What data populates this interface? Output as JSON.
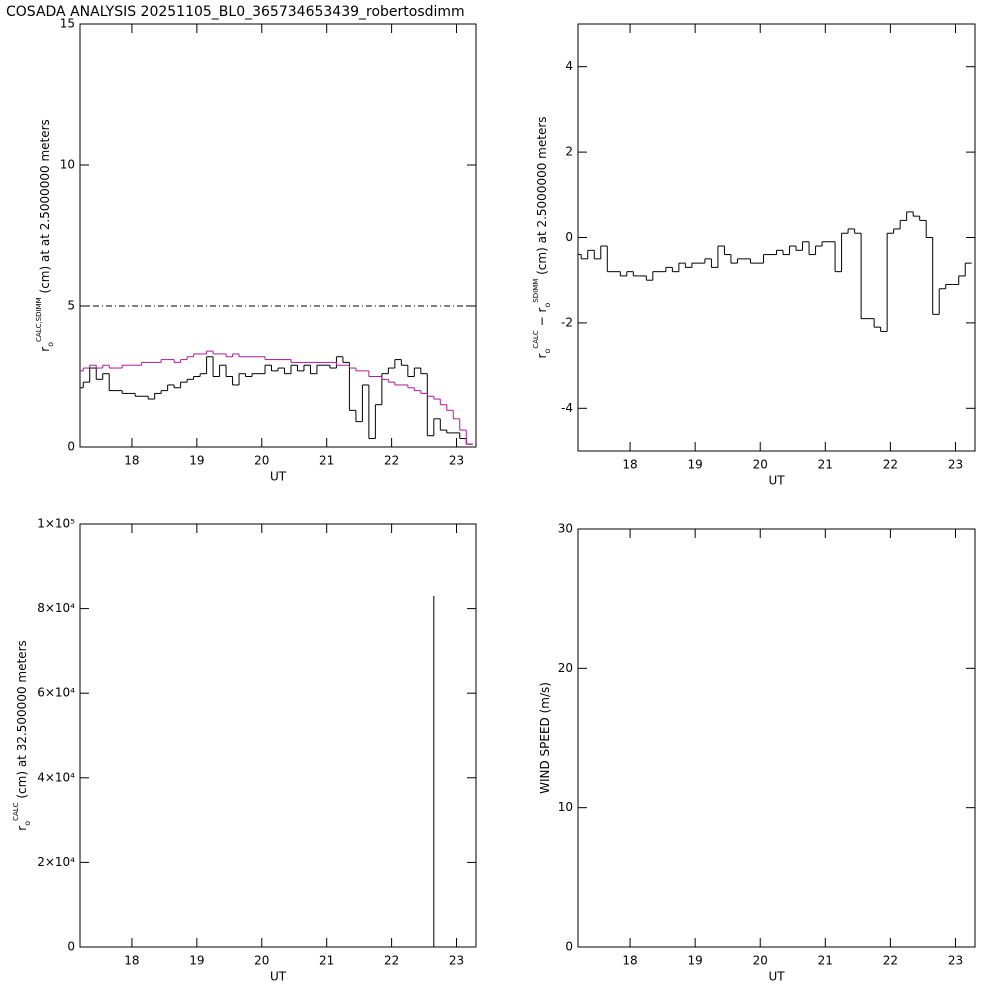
{
  "title": "COSADA ANALYSIS 20251105_BL0_365734653439_robertosdimm",
  "chart_data": [
    {
      "type": "step",
      "y_label": [
        {
          "text": "r"
        },
        {
          "sub": "o"
        },
        {
          "sup": "CALC,SDIMM"
        },
        {
          "text": " (cm) at  at 2.5000000 meters"
        }
      ],
      "x_label": "UT",
      "xlim": [
        17.2,
        23.3
      ],
      "xticks": [
        18,
        19,
        20,
        21,
        22,
        23
      ],
      "ylim": [
        0,
        15
      ],
      "yticks": [
        0,
        5,
        10,
        15
      ],
      "reference_line": 5,
      "x": [
        17.2,
        17.3,
        17.4,
        17.5,
        17.6,
        17.7,
        17.8,
        17.9,
        18.0,
        18.1,
        18.2,
        18.3,
        18.4,
        18.5,
        18.6,
        18.7,
        18.8,
        18.9,
        19.0,
        19.1,
        19.2,
        19.3,
        19.4,
        19.5,
        19.6,
        19.7,
        19.8,
        19.9,
        20.0,
        20.1,
        20.2,
        20.3,
        20.4,
        20.5,
        20.6,
        20.7,
        20.8,
        20.9,
        21.0,
        21.1,
        21.2,
        21.3,
        21.4,
        21.5,
        21.6,
        21.7,
        21.8,
        21.9,
        22.0,
        22.1,
        22.2,
        22.3,
        22.4,
        22.5,
        22.6,
        22.7,
        22.8,
        22.9,
        23.0,
        23.1,
        23.2
      ],
      "series": [
        {
          "color": "#000000",
          "values": [
            2.1,
            2.3,
            2.8,
            2.4,
            2.6,
            2.0,
            2.0,
            1.9,
            1.9,
            1.8,
            1.8,
            1.7,
            1.9,
            2.0,
            2.2,
            2.1,
            2.3,
            2.4,
            2.5,
            2.6,
            3.2,
            2.5,
            2.9,
            2.5,
            2.2,
            2.6,
            2.5,
            2.6,
            2.6,
            2.9,
            2.7,
            2.8,
            2.6,
            2.9,
            2.7,
            2.9,
            2.6,
            2.9,
            2.9,
            2.8,
            3.2,
            3.0,
            1.3,
            0.9,
            2.2,
            0.3,
            1.5,
            2.6,
            2.8,
            3.1,
            2.9,
            2.5,
            2.8,
            2.6,
            0.4,
            1.0,
            0.6,
            0.5,
            0.5,
            0.3,
            0.1
          ]
        },
        {
          "color": "#b0189a",
          "values": [
            2.7,
            2.8,
            2.9,
            2.8,
            2.9,
            2.8,
            2.8,
            2.9,
            2.9,
            2.9,
            3.0,
            3.0,
            3.0,
            3.1,
            3.1,
            3.0,
            3.1,
            3.2,
            3.3,
            3.3,
            3.4,
            3.3,
            3.3,
            3.2,
            3.3,
            3.2,
            3.2,
            3.2,
            3.2,
            3.1,
            3.1,
            3.1,
            3.1,
            3.0,
            3.0,
            3.0,
            3.0,
            3.0,
            3.0,
            3.0,
            2.9,
            2.9,
            2.8,
            2.7,
            2.7,
            2.5,
            2.5,
            2.4,
            2.3,
            2.2,
            2.2,
            2.1,
            2.0,
            1.9,
            1.8,
            1.7,
            1.5,
            1.3,
            1.0,
            0.6,
            0.1
          ]
        }
      ]
    },
    {
      "type": "step",
      "y_label": [
        {
          "text": "r"
        },
        {
          "sub": "o"
        },
        {
          "sup": "CALC"
        },
        {
          "text": "  − r"
        },
        {
          "sub": "o"
        },
        {
          "sup": "SDIMM"
        },
        {
          "text": " (cm) at 2.5000000 meters"
        }
      ],
      "x_label": "UT",
      "xlim": [
        17.2,
        23.3
      ],
      "xticks": [
        18,
        19,
        20,
        21,
        22,
        23
      ],
      "ylim": [
        -5,
        5
      ],
      "yticks": [
        -4,
        -2,
        0,
        2,
        4
      ],
      "x": [
        17.2,
        17.3,
        17.4,
        17.5,
        17.6,
        17.7,
        17.8,
        17.9,
        18.0,
        18.1,
        18.2,
        18.3,
        18.4,
        18.5,
        18.6,
        18.7,
        18.8,
        18.9,
        19.0,
        19.1,
        19.2,
        19.3,
        19.4,
        19.5,
        19.6,
        19.7,
        19.8,
        19.9,
        20.0,
        20.1,
        20.2,
        20.3,
        20.4,
        20.5,
        20.6,
        20.7,
        20.8,
        20.9,
        21.0,
        21.1,
        21.2,
        21.3,
        21.4,
        21.5,
        21.6,
        21.7,
        21.8,
        21.9,
        22.0,
        22.1,
        22.2,
        22.3,
        22.4,
        22.5,
        22.6,
        22.7,
        22.8,
        22.9,
        23.0,
        23.1,
        23.2
      ],
      "series": [
        {
          "color": "#000000",
          "values": [
            -0.4,
            -0.5,
            -0.3,
            -0.5,
            -0.2,
            -0.8,
            -0.8,
            -0.9,
            -0.8,
            -0.9,
            -0.9,
            -1.0,
            -0.8,
            -0.8,
            -0.7,
            -0.8,
            -0.6,
            -0.7,
            -0.6,
            -0.6,
            -0.5,
            -0.7,
            -0.2,
            -0.4,
            -0.6,
            -0.5,
            -0.5,
            -0.6,
            -0.6,
            -0.4,
            -0.4,
            -0.3,
            -0.4,
            -0.2,
            -0.3,
            -0.1,
            -0.4,
            -0.2,
            -0.1,
            -0.1,
            -0.8,
            0.1,
            0.2,
            0.1,
            -1.9,
            -1.9,
            -2.1,
            -2.2,
            0.1,
            0.2,
            0.4,
            0.6,
            0.5,
            0.4,
            0.0,
            -1.8,
            -1.2,
            -1.1,
            -1.1,
            -0.9,
            -0.6
          ]
        }
      ]
    },
    {
      "type": "line",
      "y_label": [
        {
          "text": "r"
        },
        {
          "sub": "o"
        },
        {
          "sup": "CALC"
        },
        {
          "text": " (cm) at 32.500000 meters"
        }
      ],
      "x_label": "UT",
      "xlim": [
        17.2,
        23.3
      ],
      "xticks": [
        18,
        19,
        20,
        21,
        22,
        23
      ],
      "ylim": [
        0,
        100000
      ],
      "yticks": [
        0,
        {
          "value": 20000,
          "label": "2×10⁴"
        },
        {
          "value": 40000,
          "label": "4×10⁴"
        },
        {
          "value": 60000,
          "label": "6×10⁴"
        },
        {
          "value": 80000,
          "label": "8×10⁴"
        },
        {
          "value": 100000,
          "label": "1×10⁵"
        }
      ],
      "x": [
        22.65,
        22.65
      ],
      "series": [
        {
          "color": "#000000",
          "values": [
            0,
            83000
          ]
        }
      ]
    },
    {
      "type": "line",
      "y_label": [
        {
          "text": "WIND SPEED (m/s)"
        }
      ],
      "x_label": "UT",
      "xlim": [
        17.2,
        23.3
      ],
      "xticks": [
        18,
        19,
        20,
        21,
        22,
        23
      ],
      "ylim": [
        0,
        30
      ],
      "yticks": [
        0,
        10,
        20,
        30
      ],
      "x": [],
      "series": []
    }
  ]
}
